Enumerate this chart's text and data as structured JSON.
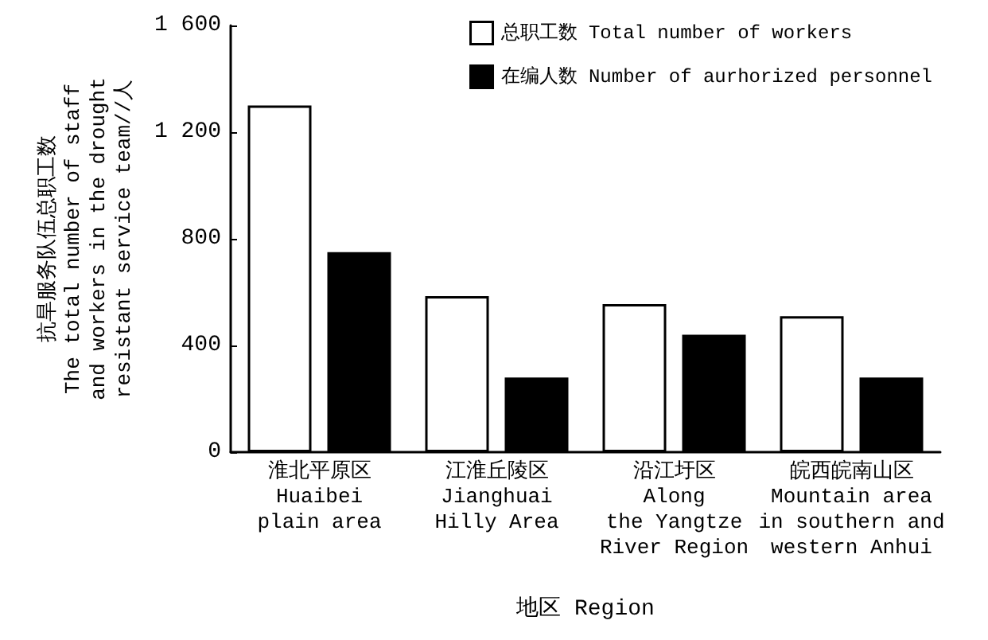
{
  "chart_data": {
    "type": "bar",
    "categories": [
      "淮北平原区\nHuaibei\nplain area",
      "江淮丘陵区\nJianghuai\nHilly Area",
      "沿江圩区\nAlong\nthe Yangtze\nRiver Region",
      "皖西皖南山区\nMountain area\nin southern and\nwestern Anhui"
    ],
    "series": [
      {
        "name": "总职工数 Total number of workers",
        "color": "#ffffff",
        "values": [
          1300,
          585,
          555,
          510
        ]
      },
      {
        "name": "在编人数 Number of aurhorized personnel",
        "color": "#000000",
        "values": [
          750,
          280,
          440,
          280
        ]
      }
    ],
    "xlabel": "地区 Region",
    "ylabel": "抗旱服务队伍总职工数\nThe total number of staff\nand workers in the drought\nresistant service team//人",
    "ylim": [
      0,
      1600
    ],
    "yticks": [
      0,
      400,
      800,
      {
        "value": 1200,
        "label": "1 200"
      },
      {
        "value": 1600,
        "label": "1 600"
      }
    ],
    "grid": false,
    "legend": "top right"
  }
}
